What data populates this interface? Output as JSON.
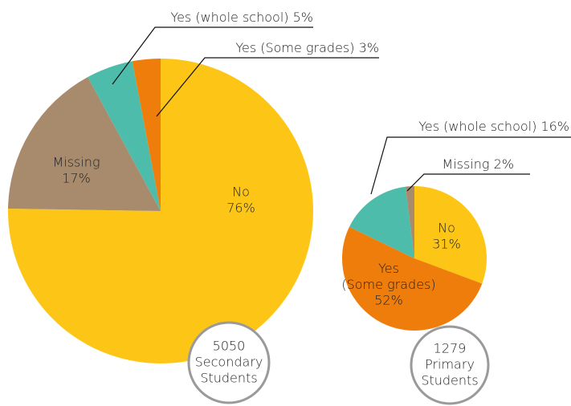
{
  "chart_data": [
    {
      "type": "pie",
      "categories": [
        "No",
        "Missing",
        "Yes (whole school)",
        "Yes (Some grades)"
      ],
      "values": [
        76,
        17,
        5,
        3
      ],
      "value_labels": [
        "76%",
        "17%",
        "5%",
        "3%"
      ],
      "colors": [
        "#fdc616",
        "#a88a6c",
        "#4dbcaa",
        "#ef7d0b"
      ],
      "annotation": [
        "5050",
        "Secondary",
        "Students"
      ]
    },
    {
      "type": "pie",
      "categories": [
        "No",
        "Yes (Some grades)",
        "Yes (whole school)",
        "Missing"
      ],
      "values": [
        31,
        52,
        16,
        2
      ],
      "value_labels": [
        "31%",
        "52%",
        "16%",
        "2%"
      ],
      "colors": [
        "#fdc616",
        "#ef7d0b",
        "#4dbcaa",
        "#a88a6c"
      ],
      "annotation": [
        "1279",
        "Primary",
        "Students"
      ]
    }
  ]
}
